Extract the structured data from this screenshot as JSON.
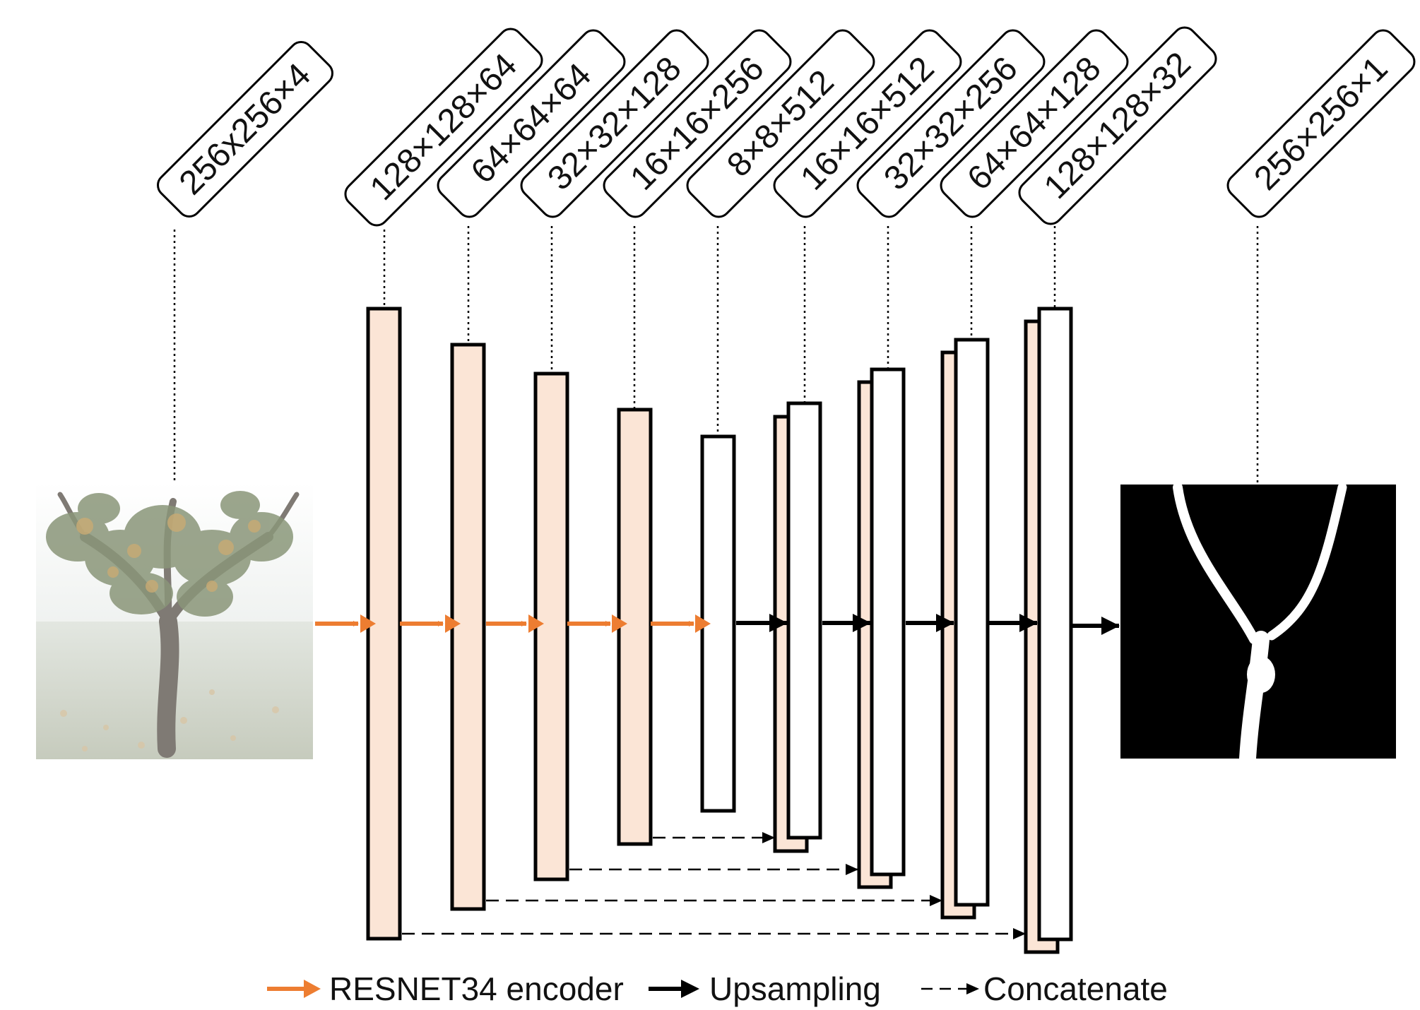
{
  "colors": {
    "encoder_fill": "#fbe5d6",
    "encoder_arrow": "#ed7d31",
    "decoder_fill": "#ffffff",
    "stroke": "#000000"
  },
  "input_image": {
    "icon": "vine-photo-icon"
  },
  "output_image": {
    "icon": "vine-mask-icon"
  },
  "tags": {
    "input": "256x256×4",
    "enc1": "128×128×64",
    "enc2": "64×64×64",
    "enc3": "32×32×128",
    "enc4": "16×16×256",
    "bottleneck": "8×8×512",
    "dec1": "16×16×512",
    "dec2": "32×32×256",
    "dec3": "64×64×128",
    "dec4": "128×128×32",
    "output": "256×256×1"
  },
  "legend": {
    "encoder": "RESNET34 encoder",
    "upsampling": "Upsampling",
    "concatenate": "Concatenate"
  }
}
